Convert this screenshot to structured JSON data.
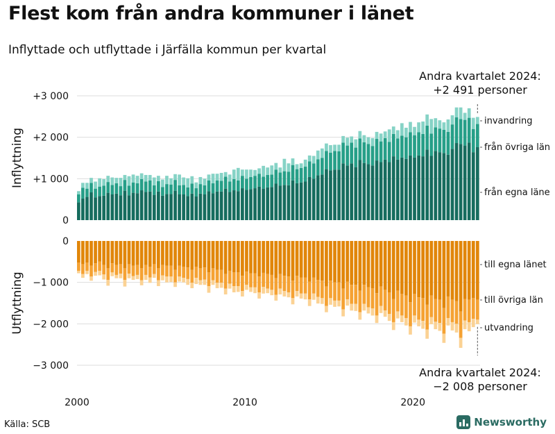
{
  "title": "Flest kom från andra kommuner i länet",
  "subtitle": "Inflyttade och utflyttade i Järfälla kommun per kvartal",
  "source": "Källa: SCB",
  "brand": "Newsworthy",
  "colors": {
    "in_lan": "#166c5e",
    "in_ovriga": "#269f88",
    "in_invandring": "#86d3c6",
    "ut_lan": "#e1860a",
    "ut_ovriga": "#f5a233",
    "ut_utvandring": "#fbd294",
    "grid": "#dddddd",
    "text": "#111111"
  },
  "chart_data": {
    "type": "bar",
    "x_start_year": 2000,
    "quarters_per_year": 4,
    "xticks": [
      {
        "year": 2000,
        "label": "2000"
      },
      {
        "year": 2010,
        "label": "2010"
      },
      {
        "year": 2020,
        "label": "2020"
      }
    ],
    "top_panel": {
      "ylabel": "Inflyttning",
      "ylim": [
        0,
        3200
      ],
      "yticks": [
        {
          "value": 0,
          "label": "0"
        },
        {
          "value": 1000,
          "label": "+1 000"
        },
        {
          "value": 2000,
          "label": "+2 000"
        },
        {
          "value": 3000,
          "label": "+3 000"
        }
      ],
      "series": [
        {
          "name": "från egna läne",
          "values": [
            430,
            520,
            560,
            670,
            550,
            580,
            590,
            660,
            620,
            640,
            600,
            710,
            600,
            660,
            650,
            720,
            680,
            690,
            610,
            690,
            590,
            630,
            630,
            710,
            620,
            620,
            580,
            640,
            570,
            640,
            620,
            700,
            650,
            690,
            690,
            760,
            680,
            720,
            700,
            770,
            730,
            750,
            770,
            810,
            760,
            790,
            800,
            880,
            830,
            850,
            840,
            960,
            890,
            910,
            930,
            1040,
            1000,
            1080,
            1100,
            1230,
            1200,
            1220,
            1220,
            1370,
            1320,
            1370,
            1280,
            1450,
            1380,
            1350,
            1320,
            1440,
            1400,
            1460,
            1400,
            1540,
            1460,
            1510,
            1480,
            1560,
            1510,
            1560,
            1540,
            1700,
            1550,
            1670,
            1640,
            1620,
            1580,
            1720,
            1860,
            1840,
            1800,
            1870,
            1640,
            1760
          ]
        },
        {
          "name": "från övriga län",
          "values": [
            190,
            260,
            200,
            230,
            210,
            230,
            240,
            260,
            230,
            250,
            220,
            260,
            230,
            250,
            240,
            270,
            250,
            270,
            230,
            250,
            210,
            240,
            230,
            260,
            220,
            230,
            210,
            240,
            200,
            230,
            220,
            260,
            240,
            270,
            260,
            290,
            250,
            270,
            260,
            300,
            270,
            290,
            300,
            310,
            290,
            300,
            300,
            340,
            320,
            330,
            330,
            370,
            340,
            350,
            360,
            380,
            370,
            390,
            400,
            440,
            430,
            450,
            440,
            500,
            480,
            500,
            470,
            520,
            500,
            490,
            470,
            520,
            500,
            520,
            490,
            540,
            510,
            530,
            520,
            560,
            540,
            560,
            540,
            580,
            540,
            570,
            570,
            560,
            550,
            590,
            620,
            600,
            620,
            600,
            560,
            560
          ]
        },
        {
          "name": "invandring",
          "values": [
            80,
            120,
            140,
            120,
            170,
            200,
            160,
            150,
            180,
            130,
            200,
            120,
            230,
            190,
            180,
            140,
            160,
            130,
            190,
            130,
            180,
            200,
            150,
            140,
            260,
            180,
            220,
            180,
            140,
            170,
            160,
            140,
            230,
            160,
            190,
            110,
            170,
            230,
            300,
            150,
            220,
            180,
            140,
            130,
            260,
            180,
            220,
            160,
            120,
            300,
            200,
            160,
            120,
            110,
            170,
            140,
            180,
            210,
            230,
            180,
            180,
            150,
            160,
            160,
            190,
            150,
            200,
            180,
            170,
            160,
            190,
            170,
            190,
            160,
            300,
            180,
            200,
            300,
            230,
            250,
            200,
            240,
            300,
            270,
            350,
            220,
            200,
            180,
            300,
            220,
            240,
            280,
            170,
            230,
            270,
            170
          ]
        }
      ]
    },
    "bottom_panel": {
      "ylabel": "Utflyttning",
      "ylim": [
        -3300,
        0
      ],
      "yticks": [
        {
          "value": 0,
          "label": "0"
        },
        {
          "value": -1000,
          "label": "−1 000"
        },
        {
          "value": -2000,
          "label": "−2 000"
        },
        {
          "value": -3000,
          "label": "−3 000"
        }
      ],
      "series": [
        {
          "name": "till egna länet",
          "values": [
            -520,
            -560,
            -520,
            -600,
            -540,
            -500,
            -580,
            -660,
            -540,
            -580,
            -560,
            -660,
            -560,
            -600,
            -580,
            -660,
            -580,
            -620,
            -560,
            -660,
            -580,
            -600,
            -600,
            -700,
            -600,
            -620,
            -640,
            -700,
            -620,
            -660,
            -640,
            -760,
            -660,
            -700,
            -700,
            -800,
            -720,
            -760,
            -760,
            -840,
            -740,
            -780,
            -780,
            -860,
            -770,
            -800,
            -820,
            -900,
            -800,
            -840,
            -860,
            -960,
            -840,
            -880,
            -880,
            -980,
            -880,
            -940,
            -960,
            -1100,
            -960,
            -1000,
            -1000,
            -1150,
            -980,
            -1060,
            -1060,
            -1200,
            -1060,
            -1120,
            -1140,
            -1260,
            -1100,
            -1180,
            -1240,
            -1400,
            -1200,
            -1280,
            -1320,
            -1480,
            -1280,
            -1360,
            -1380,
            -1540,
            -1320,
            -1400,
            -1420,
            -1620,
            -1340,
            -1420,
            -1450,
            -1700,
            -1400,
            -1420,
            -1380,
            -1420
          ]
        },
        {
          "name": "till övriga län",
          "values": [
            -200,
            -240,
            -200,
            -260,
            -210,
            -220,
            -230,
            -280,
            -220,
            -240,
            -230,
            -280,
            -230,
            -250,
            -240,
            -290,
            -240,
            -260,
            -240,
            -290,
            -250,
            -260,
            -260,
            -300,
            -260,
            -270,
            -280,
            -310,
            -270,
            -290,
            -290,
            -330,
            -290,
            -310,
            -310,
            -350,
            -310,
            -330,
            -330,
            -370,
            -320,
            -340,
            -340,
            -380,
            -340,
            -350,
            -360,
            -400,
            -350,
            -370,
            -380,
            -420,
            -370,
            -390,
            -390,
            -430,
            -390,
            -410,
            -420,
            -470,
            -420,
            -440,
            -440,
            -500,
            -430,
            -460,
            -460,
            -520,
            -460,
            -480,
            -490,
            -540,
            -470,
            -500,
            -520,
            -560,
            -500,
            -520,
            -540,
            -580,
            -520,
            -540,
            -550,
            -600,
            -520,
            -550,
            -560,
            -620,
            -520,
            -540,
            -550,
            -640,
            -520,
            -540,
            -500,
            -480
          ]
        },
        {
          "name": "utvandring",
          "values": [
            -60,
            -90,
            -80,
            -100,
            -90,
            -110,
            -120,
            -140,
            -90,
            -80,
            -110,
            -160,
            -110,
            -90,
            -100,
            -120,
            -120,
            -130,
            -90,
            -140,
            -120,
            -140,
            -130,
            -110,
            -120,
            -110,
            -140,
            -130,
            -150,
            -110,
            -130,
            -160,
            -110,
            -130,
            -120,
            -140,
            -120,
            -150,
            -140,
            -130,
            -120,
            -110,
            -140,
            -150,
            -160,
            -110,
            -130,
            -140,
            -140,
            -130,
            -120,
            -150,
            -130,
            -120,
            -140,
            -160,
            -150,
            -160,
            -140,
            -150,
            -160,
            -150,
            -140,
            -170,
            -150,
            -160,
            -170,
            -180,
            -160,
            -150,
            -170,
            -180,
            -170,
            -150,
            -170,
            -190,
            -170,
            -160,
            -180,
            -200,
            -170,
            -160,
            -190,
            -220,
            -170,
            -180,
            -190,
            -220,
            -180,
            -200,
            -210,
            -240,
            -210,
            -220,
            -200,
            -108
          ]
        }
      ]
    },
    "annotations": [
      {
        "panel": "top",
        "line1": "Andra kvartalet 2024:",
        "line2": "+2 491 personer",
        "value": 2491
      },
      {
        "panel": "bottom",
        "line1": "Andra kvartalet 2024:",
        "line2": "−2 008 personer",
        "value": -2008
      }
    ],
    "series_labels_top": [
      "invandring",
      "från övriga län",
      "från egna läne"
    ],
    "series_labels_bottom": [
      "till egna länet",
      "till övriga län",
      "utvandring"
    ]
  }
}
